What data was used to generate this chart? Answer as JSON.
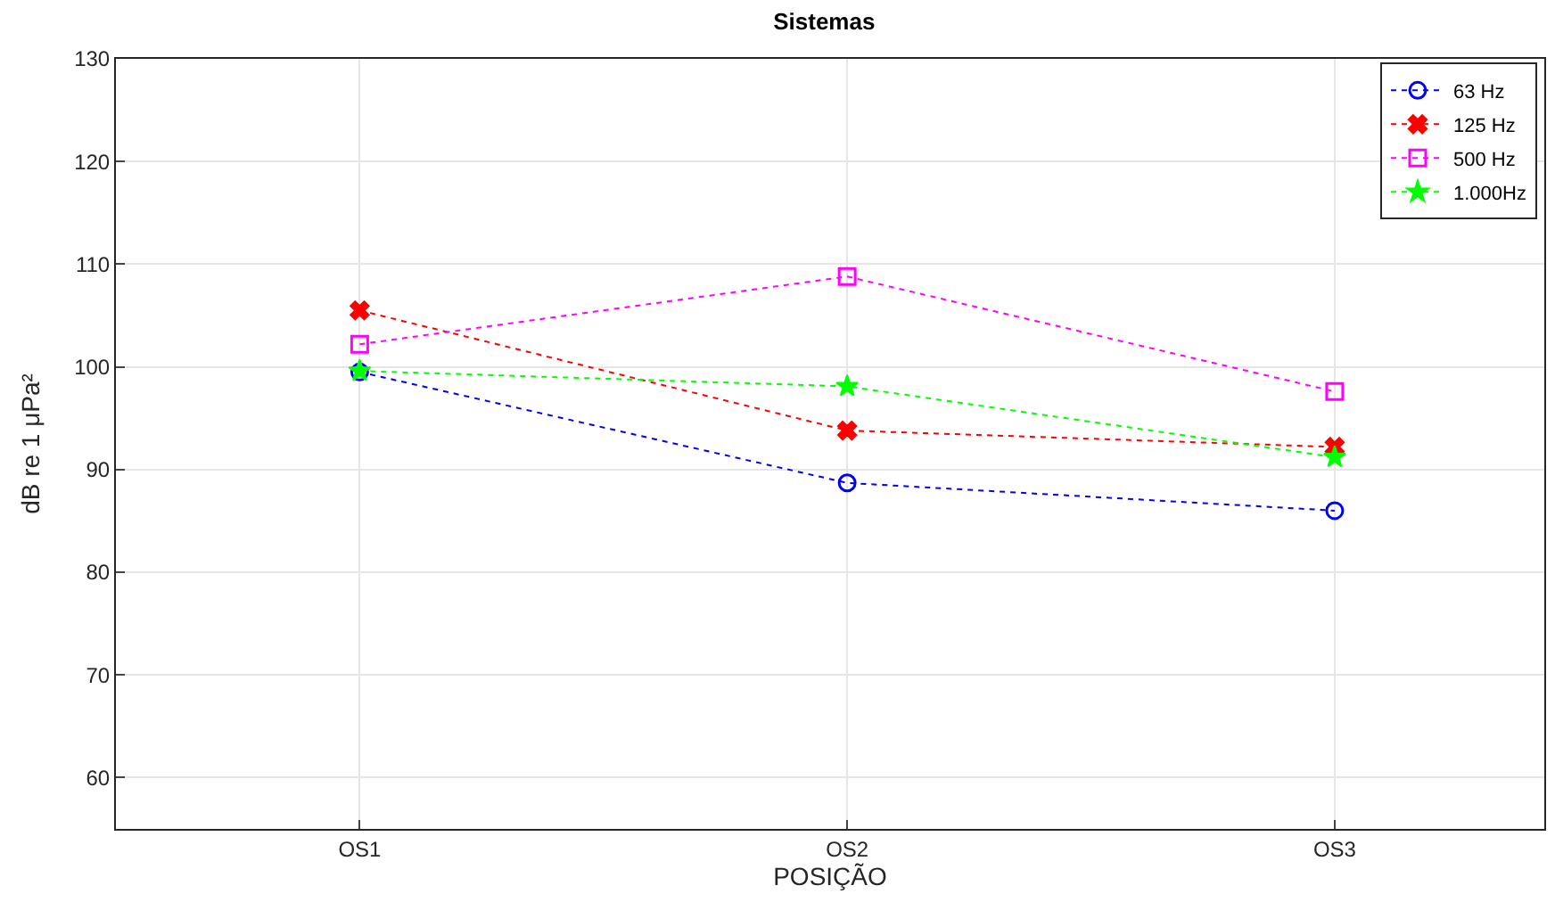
{
  "chart_data": {
    "type": "line",
    "title": "Sistemas",
    "xlabel": "POSIÇÃO",
    "ylabel": "dB re 1 μPa²",
    "categories": [
      "OS1",
      "OS2",
      "OS3"
    ],
    "series": [
      {
        "name": "63 Hz",
        "color": "#0000ff",
        "marker": "circle",
        "values": [
          99.5,
          88.7,
          86.0
        ]
      },
      {
        "name": "125 Hz",
        "color": "#ff0000",
        "marker": "cross",
        "values": [
          105.5,
          93.8,
          92.2
        ]
      },
      {
        "name": "500 Hz",
        "color": "#ff00ff",
        "marker": "square",
        "values": [
          102.2,
          108.8,
          97.6
        ]
      },
      {
        "name": "1.000Hz",
        "color": "#00ff00",
        "marker": "star",
        "values": [
          99.6,
          98.1,
          91.2
        ]
      }
    ],
    "ylim": [
      55,
      130
    ],
    "yticks": [
      60,
      70,
      80,
      90,
      100,
      110,
      120,
      130
    ],
    "grid": true,
    "legend": "top right",
    "line_style": "dotted"
  }
}
